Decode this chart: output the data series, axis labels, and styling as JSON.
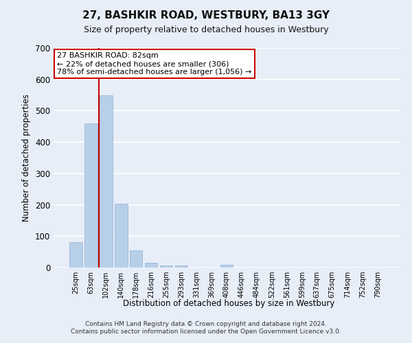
{
  "title": "27, BASHKIR ROAD, WESTBURY, BA13 3GY",
  "subtitle": "Size of property relative to detached houses in Westbury",
  "xlabel": "Distribution of detached houses by size in Westbury",
  "ylabel": "Number of detached properties",
  "categories": [
    "25sqm",
    "63sqm",
    "102sqm",
    "140sqm",
    "178sqm",
    "216sqm",
    "255sqm",
    "293sqm",
    "331sqm",
    "369sqm",
    "408sqm",
    "446sqm",
    "484sqm",
    "522sqm",
    "561sqm",
    "599sqm",
    "637sqm",
    "675sqm",
    "714sqm",
    "752sqm",
    "790sqm"
  ],
  "values": [
    80,
    460,
    550,
    203,
    55,
    15,
    7,
    7,
    0,
    0,
    8,
    0,
    0,
    0,
    0,
    0,
    0,
    0,
    0,
    0,
    0
  ],
  "bar_color": "#b8cfe8",
  "bar_edge_color": "#9ab8d8",
  "background_color": "#e8eef8",
  "grid_color": "#ffffff",
  "property_line_color": "#cc0000",
  "property_line_x": 1.55,
  "annotation_text": "27 BASHKIR ROAD: 82sqm\n← 22% of detached houses are smaller (306)\n78% of semi-detached houses are larger (1,056) →",
  "annotation_box_color": "#ffffff",
  "annotation_box_edge": "#cc0000",
  "ylim": [
    0,
    700
  ],
  "yticks": [
    0,
    100,
    200,
    300,
    400,
    500,
    600,
    700
  ],
  "footer_line1": "Contains HM Land Registry data © Crown copyright and database right 2024.",
  "footer_line2": "Contains public sector information licensed under the Open Government Licence v3.0."
}
